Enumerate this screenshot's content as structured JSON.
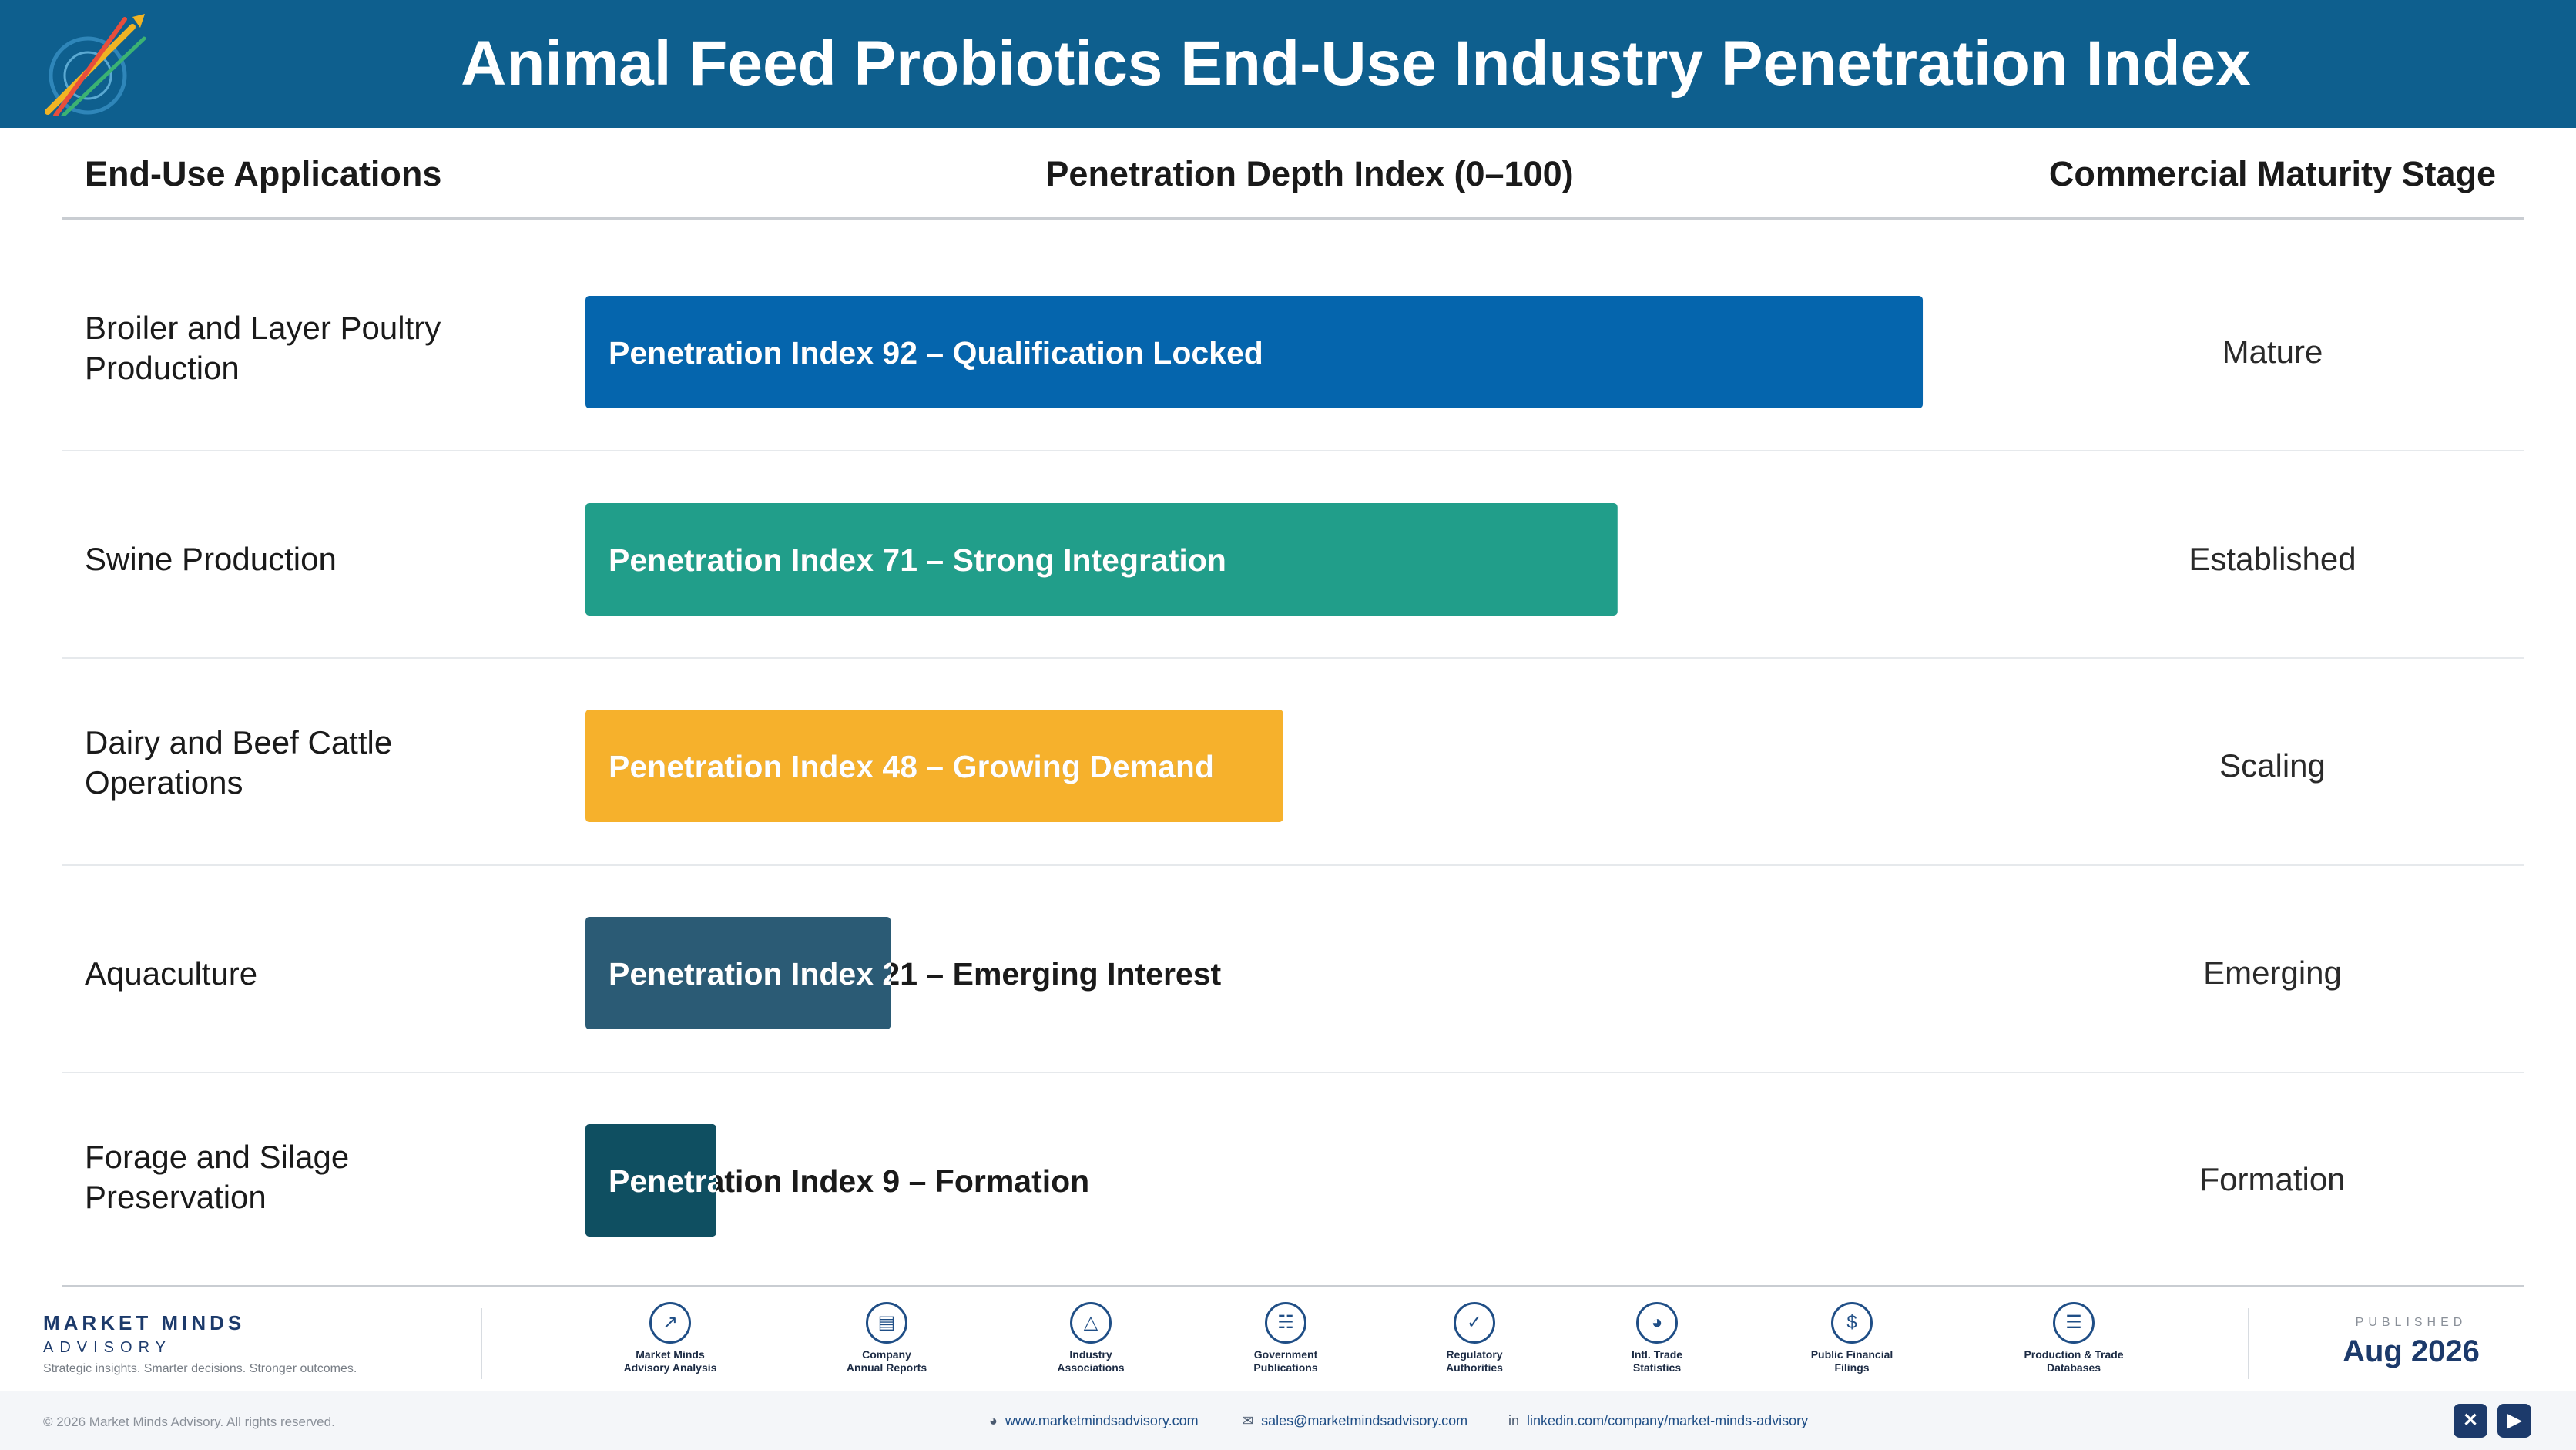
{
  "header": {
    "title": "Animal Feed Probiotics End-Use Industry Penetration Index",
    "logo_icon": "market-minds-logo-icon"
  },
  "columns": {
    "apps": "End-Use Applications",
    "depth": "Penetration Depth Index (0–100)",
    "stage": "Commercial Maturity Stage"
  },
  "chart_data": {
    "type": "bar",
    "orientation": "horizontal",
    "ylabel": "Penetration Depth Index (0–100)",
    "xlim": [
      0,
      100
    ],
    "categories": [
      "Broiler and Layer Poultry Production",
      "Swine Production",
      "Dairy and Beef Cattle Operations",
      "Aquaculture",
      "Forage and Silage Preservation"
    ],
    "values": [
      92,
      71,
      48,
      21,
      9
    ],
    "bar_labels": [
      "Penetration Index 92 – Qualification Locked",
      "Penetration Index 71 – Strong Integration",
      "Penetration Index 48 – Growing Demand",
      "Penetration Index 21 – Emerging Interest",
      "Penetration Index 9 – Formation"
    ],
    "stages": [
      "Mature",
      "Established",
      "Scaling",
      "Emerging",
      "Formation"
    ],
    "colors": [
      "#0565ad",
      "#219e8a",
      "#f6b12c",
      "#2b5b75",
      "#0f4f61"
    ],
    "grid": false
  },
  "footer": {
    "brand_name": "MARKET MINDS",
    "brand_sub": "ADVISORY",
    "brand_tagline": "Strategic insights. Smarter decisions. Stronger outcomes.",
    "sources": [
      {
        "line1": "Market Minds",
        "line2": "Advisory Analysis",
        "icon": "trend-chart-icon"
      },
      {
        "line1": "Company",
        "line2": "Annual Reports",
        "icon": "document-icon"
      },
      {
        "line1": "Industry",
        "line2": "Associations",
        "icon": "network-icon"
      },
      {
        "line1": "Government",
        "line2": "Publications",
        "icon": "government-building-icon"
      },
      {
        "line1": "Regulatory",
        "line2": "Authorities",
        "icon": "shield-check-icon"
      },
      {
        "line1": "Intl. Trade",
        "line2": "Statistics",
        "icon": "globe-icon"
      },
      {
        "line1": "Public Financial",
        "line2": "Filings",
        "icon": "dollar-coin-icon"
      },
      {
        "line1": "Production & Trade",
        "line2": "Databases",
        "icon": "database-icon"
      }
    ],
    "published_label": "PUBLISHED",
    "published_date": "Aug 2026",
    "copyright": "© 2026 Market Minds Advisory. All rights reserved.",
    "website": "www.marketmindsadvisory.com",
    "email": "sales@marketmindsadvisory.com",
    "linkedin": "linkedin.com/company/market-minds-advisory",
    "social_icons": [
      "x-twitter-icon",
      "youtube-icon"
    ]
  }
}
